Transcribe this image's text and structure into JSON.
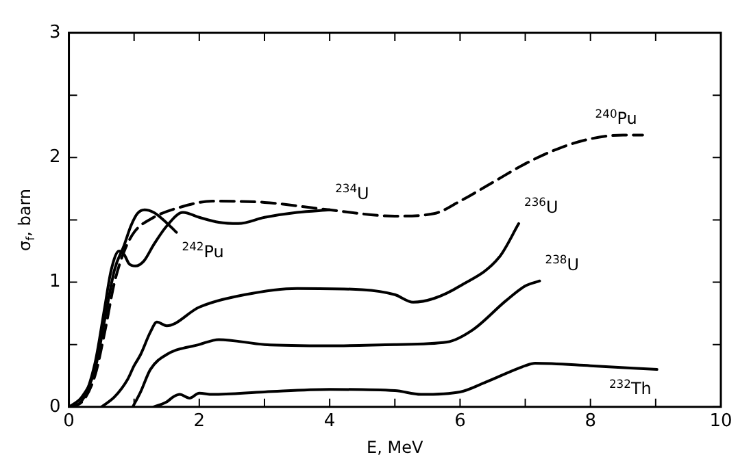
{
  "chart_data": {
    "type": "line",
    "xlabel": "E, MeV",
    "ylabel": "σ$_{f}$, barn",
    "xlim": [
      0,
      10
    ],
    "ylim": [
      0,
      3
    ],
    "xticks": [
      0,
      {
        "value": 1,
        "label": null
      },
      2,
      {
        "value": 3,
        "label": null
      },
      4,
      {
        "value": 5,
        "label": null
      },
      6,
      {
        "value": 7,
        "label": null
      },
      8,
      {
        "value": 9,
        "label": null
      },
      10
    ],
    "yticks": [
      0,
      {
        "value": 0.5,
        "label": null
      },
      1,
      {
        "value": 1.5,
        "label": null
      },
      2,
      {
        "value": 2.5,
        "label": null
      },
      3
    ],
    "grid": false,
    "legend": false,
    "marker": "none",
    "line_style": "solid",
    "series": [
      {
        "name": "$^{242}$Pu",
        "color": "#000000",
        "x": [
          0,
          0.2,
          0.4,
          0.55,
          0.7,
          0.85,
          0.95,
          1.05,
          1.16,
          1.3,
          1.45,
          1.65
        ],
        "values": [
          0,
          0.08,
          0.3,
          0.7,
          1.1,
          1.3,
          1.45,
          1.55,
          1.58,
          1.56,
          1.5,
          1.4
        ]
      },
      {
        "name": "$^{234}$U",
        "color": "#000000",
        "x": [
          0,
          0.2,
          0.4,
          0.55,
          0.65,
          0.77,
          0.85,
          0.92,
          1.02,
          1.15,
          1.3,
          1.5,
          1.75,
          2.0,
          2.3,
          2.6,
          3.0,
          3.5,
          4.0
        ],
        "values": [
          0,
          0.05,
          0.35,
          0.8,
          1.1,
          1.25,
          1.22,
          1.15,
          1.13,
          1.17,
          1.3,
          1.45,
          1.56,
          1.52,
          1.48,
          1.47,
          1.52,
          1.56,
          1.58
        ]
      },
      {
        "name": "$^{240}$Pu",
        "color": "#000000",
        "line_style": "dashed",
        "x": [
          0,
          0.2,
          0.4,
          0.55,
          0.7,
          0.85,
          1.0,
          1.3,
          1.7,
          2.2,
          3.0,
          4.0,
          5.0,
          5.6,
          6.0,
          6.5,
          7.0,
          7.5,
          8.0,
          8.5,
          8.8
        ],
        "values": [
          0,
          0.04,
          0.25,
          0.6,
          1.0,
          1.25,
          1.4,
          1.52,
          1.6,
          1.65,
          1.64,
          1.58,
          1.53,
          1.55,
          1.65,
          1.8,
          1.95,
          2.07,
          2.15,
          2.18,
          2.18
        ]
      },
      {
        "name": "$^{236}$U",
        "color": "#000000",
        "x": [
          0.5,
          0.7,
          0.9,
          1.0,
          1.1,
          1.25,
          1.35,
          1.5,
          2.0,
          2.7,
          3.5,
          4.5,
          5.0,
          5.28,
          5.6,
          6.0,
          6.6,
          6.9
        ],
        "values": [
          0,
          0.08,
          0.22,
          0.33,
          0.42,
          0.6,
          0.68,
          0.65,
          0.8,
          0.9,
          0.95,
          0.94,
          0.9,
          0.84,
          0.87,
          0.97,
          1.2,
          1.47
        ]
      },
      {
        "name": "$^{238}$U",
        "color": "#000000",
        "x": [
          0.98,
          1.1,
          1.25,
          1.5,
          2.0,
          2.3,
          3.0,
          4.0,
          5.0,
          5.8,
          6.2,
          6.7,
          7.0,
          7.22
        ],
        "values": [
          0,
          0.12,
          0.3,
          0.42,
          0.5,
          0.54,
          0.5,
          0.49,
          0.5,
          0.52,
          0.62,
          0.85,
          0.97,
          1.01
        ]
      },
      {
        "name": "$^{232}$Th",
        "color": "#000000",
        "x": [
          1.3,
          1.5,
          1.6,
          1.7,
          1.85,
          2.0,
          2.2,
          3.0,
          4.0,
          5.0,
          5.4,
          6.0,
          6.4,
          7.0,
          7.15,
          8.0,
          9.02
        ],
        "values": [
          0,
          0.04,
          0.08,
          0.1,
          0.07,
          0.11,
          0.1,
          0.12,
          0.14,
          0.13,
          0.1,
          0.12,
          0.2,
          0.33,
          0.35,
          0.33,
          0.3
        ]
      }
    ]
  }
}
